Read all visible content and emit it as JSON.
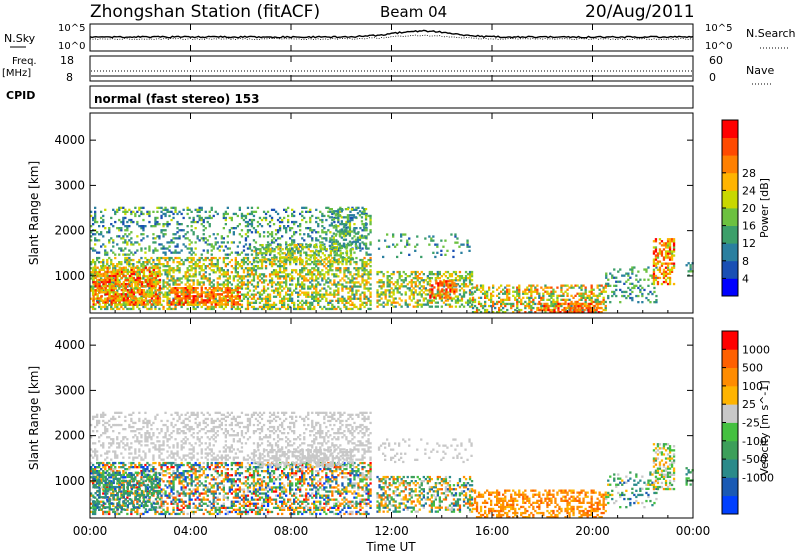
{
  "header": {
    "station_title": "Zhongshan Station (fitACF)",
    "beam_label": "Beam 04",
    "date": "20/Aug/2011"
  },
  "noise_panel": {
    "left_label": "N.Sky",
    "right_label": "N.Search",
    "left_ticks": [
      "10^5",
      "10^0"
    ],
    "right_ticks": [
      "10^5",
      "10^0"
    ]
  },
  "freq_panel": {
    "left_label": "Freq.",
    "left_unit": "[MHz]",
    "right_label": "Nave",
    "left_ticks": [
      "18",
      "8"
    ],
    "right_ticks": [
      "60",
      "0"
    ]
  },
  "cpid_panel": {
    "label": "CPID",
    "mode_text": "normal (fast stereo) 153"
  },
  "x_axis": {
    "tick_labels": [
      "00:00",
      "04:00",
      "08:00",
      "12:00",
      "16:00",
      "20:00",
      "00:00"
    ],
    "title": "Time UT"
  },
  "chart_data": [
    {
      "type": "heatmap",
      "name": "power",
      "ylabel": "Slant Range [km]",
      "yticks": [
        1000,
        2000,
        3000,
        4000
      ],
      "ylim": [
        180,
        4600
      ],
      "xlim_hours": [
        0,
        24
      ],
      "colorbar": {
        "label": "Power [dB]",
        "range": [
          0,
          30
        ],
        "tick_labels": [
          "4",
          "8",
          "12",
          "16",
          "20",
          "24",
          "28"
        ],
        "colors": [
          "#0000ff",
          "#1a4fb4",
          "#2a7f9f",
          "#3c9f6a",
          "#6cc140",
          "#c8d800",
          "#ffb400",
          "#ff8000",
          "#ff4a00",
          "#ff0000"
        ]
      },
      "bands": [
        {
          "t0": 0.0,
          "t1": 11.2,
          "r0": 250,
          "r1": 1400,
          "v0": 8,
          "v1": 22,
          "p": 0.5
        },
        {
          "t0": 0.0,
          "t1": 11.2,
          "r0": 1450,
          "r1": 2500,
          "v0": 4,
          "v1": 16,
          "p": 0.25
        },
        {
          "t0": 0.1,
          "t1": 2.8,
          "r0": 350,
          "r1": 1200,
          "v0": 14,
          "v1": 29,
          "p": 0.6
        },
        {
          "t0": 3.2,
          "t1": 6.0,
          "r0": 350,
          "r1": 750,
          "v0": 18,
          "v1": 29,
          "p": 0.6
        },
        {
          "t0": 6.5,
          "t1": 10.5,
          "r0": 1300,
          "r1": 1700,
          "v0": 10,
          "v1": 20,
          "p": 0.45
        },
        {
          "t0": 9.5,
          "t1": 11.0,
          "r0": 1600,
          "r1": 2500,
          "v0": 6,
          "v1": 16,
          "p": 0.35
        },
        {
          "t0": 11.3,
          "t1": 15.2,
          "r0": 1400,
          "r1": 1900,
          "v0": 5,
          "v1": 14,
          "p": 0.12
        },
        {
          "t0": 11.4,
          "t1": 15.2,
          "r0": 300,
          "r1": 1100,
          "v0": 8,
          "v1": 22,
          "p": 0.45
        },
        {
          "t0": 13.5,
          "t1": 14.6,
          "r0": 500,
          "r1": 900,
          "v0": 20,
          "v1": 29,
          "p": 0.55
        },
        {
          "t0": 15.2,
          "t1": 20.5,
          "r0": 180,
          "r1": 800,
          "v0": 8,
          "v1": 26,
          "p": 0.45
        },
        {
          "t0": 17.8,
          "t1": 20.3,
          "r0": 180,
          "r1": 400,
          "v0": 20,
          "v1": 29,
          "p": 0.5
        },
        {
          "t0": 20.5,
          "t1": 22.5,
          "r0": 400,
          "r1": 1200,
          "v0": 5,
          "v1": 14,
          "p": 0.2
        },
        {
          "t0": 22.4,
          "t1": 23.2,
          "r0": 800,
          "r1": 1800,
          "v0": 14,
          "v1": 29,
          "p": 0.5
        },
        {
          "t0": 23.7,
          "t1": 24.0,
          "r0": 900,
          "r1": 1300,
          "v0": 6,
          "v1": 14,
          "p": 0.4
        }
      ]
    },
    {
      "type": "heatmap",
      "name": "velocity",
      "ylabel": "Slant Range [km]",
      "yticks": [
        1000,
        2000,
        3000,
        4000
      ],
      "ylim": [
        180,
        4600
      ],
      "xlim_hours": [
        0,
        24
      ],
      "colorbar": {
        "label": "Velocity [m s^-1]",
        "tick_labels": [
          "1000",
          "500",
          "100",
          "25",
          "-25",
          "-100",
          "-500",
          "-1000"
        ],
        "colors": [
          "#0040ff",
          "#1a5ab4",
          "#2a8a8a",
          "#3c9f5a",
          "#44c040",
          "#c8c8c8",
          "#ffb400",
          "#ff8c00",
          "#ff6000",
          "#ff0000"
        ]
      },
      "bands": [
        {
          "t0": 0.0,
          "t1": 11.2,
          "r0": 250,
          "r1": 1400,
          "v0": 0,
          "v1": 9,
          "p": 0.5
        },
        {
          "t0": 0.0,
          "t1": 11.2,
          "r0": 1450,
          "r1": 2500,
          "v0": 5,
          "v1": 5,
          "p": 0.3
        },
        {
          "t0": 6.5,
          "t1": 10.5,
          "r0": 1300,
          "r1": 1700,
          "v0": 5,
          "v1": 5,
          "p": 0.45
        },
        {
          "t0": 0.1,
          "t1": 2.8,
          "r0": 350,
          "r1": 1200,
          "v0": 1,
          "v1": 4,
          "p": 0.45
        },
        {
          "t0": 11.3,
          "t1": 15.2,
          "r0": 1400,
          "r1": 1900,
          "v0": 5,
          "v1": 5,
          "p": 0.12
        },
        {
          "t0": 11.4,
          "t1": 15.2,
          "r0": 300,
          "r1": 1100,
          "v0": 1,
          "v1": 8,
          "p": 0.45
        },
        {
          "t0": 15.2,
          "t1": 20.5,
          "r0": 180,
          "r1": 800,
          "v0": 6,
          "v1": 8,
          "p": 0.45
        },
        {
          "t0": 20.5,
          "t1": 22.5,
          "r0": 400,
          "r1": 1200,
          "v0": 1,
          "v1": 6,
          "p": 0.2
        },
        {
          "t0": 22.4,
          "t1": 23.2,
          "r0": 800,
          "r1": 1800,
          "v0": 3,
          "v1": 7,
          "p": 0.5
        },
        {
          "t0": 23.7,
          "t1": 24.0,
          "r0": 900,
          "r1": 1300,
          "v0": 1,
          "v1": 4,
          "p": 0.4
        }
      ]
    }
  ]
}
